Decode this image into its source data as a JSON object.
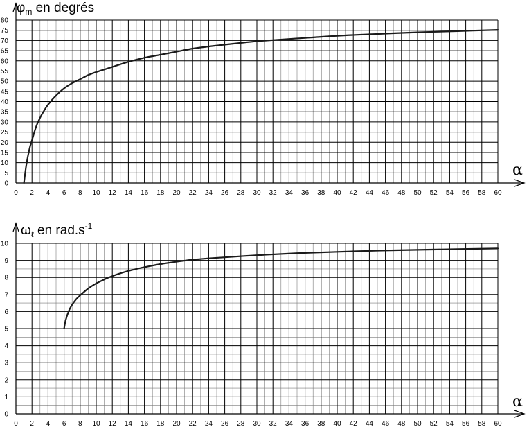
{
  "chart_data": [
    {
      "type": "line",
      "title": {
        "symbol": "φ",
        "subscript": "m",
        "text": " en degrés"
      },
      "xlabel": "α",
      "xlim": [
        0,
        60
      ],
      "ylim": [
        0,
        80
      ],
      "x_ticks": [
        "0",
        "2",
        "4",
        "6",
        "8",
        "10",
        "12",
        "14",
        "16",
        "18",
        "20",
        "22",
        "24",
        "26",
        "28",
        "30",
        "32",
        "34",
        "36",
        "38",
        "40",
        "42",
        "44",
        "46",
        "48",
        "50",
        "52",
        "54",
        "56",
        "58",
        "60"
      ],
      "y_ticks": [
        "0",
        "5",
        "10",
        "15",
        "20",
        "25",
        "30",
        "35",
        "40",
        "45",
        "50",
        "55",
        "60",
        "65",
        "70",
        "75",
        "80"
      ],
      "grid": true,
      "series": [
        {
          "color": "#1a1a1a",
          "x": [
            1,
            1.3,
            1.7,
            2,
            2.5,
            3,
            3.5,
            4,
            5,
            6,
            7,
            8,
            9,
            10,
            12,
            14,
            16,
            18,
            20,
            22,
            25,
            28,
            30,
            32,
            35,
            40,
            45,
            50,
            55,
            60
          ],
          "y": [
            0,
            9,
            17,
            21,
            27.5,
            32,
            35.5,
            38.5,
            43,
            46.5,
            49,
            51,
            53,
            54.5,
            57,
            59.5,
            61.5,
            63,
            64.5,
            66,
            67.5,
            68.8,
            69.6,
            70.2,
            71,
            72.3,
            73.2,
            74,
            74.6,
            75.2
          ]
        }
      ]
    },
    {
      "type": "line",
      "title": {
        "symbol": "ω",
        "subscript": "ℓ",
        "text": " en rad.s",
        "superscript": "-1"
      },
      "xlabel": "α",
      "xlim": [
        0,
        60
      ],
      "ylim": [
        0,
        10
      ],
      "x_ticks": [
        "0",
        "2",
        "4",
        "6",
        "8",
        "10",
        "12",
        "14",
        "16",
        "18",
        "20",
        "22",
        "24",
        "26",
        "28",
        "30",
        "32",
        "34",
        "36",
        "38",
        "40",
        "42",
        "44",
        "46",
        "48",
        "50",
        "52",
        "54",
        "56",
        "58",
        "60"
      ],
      "y_ticks": [
        "0",
        "1",
        "2",
        "3",
        "4",
        "5",
        "6",
        "7",
        "8",
        "9",
        "10"
      ],
      "grid": true,
      "series": [
        {
          "color": "#1a1a1a",
          "x": [
            6,
            6.2,
            6.6,
            7,
            7.5,
            8,
            9,
            10,
            11,
            12,
            14,
            16,
            18,
            20,
            22,
            25,
            30,
            35,
            40,
            45,
            50,
            55,
            60
          ],
          "y": [
            5,
            5.5,
            6.05,
            6.4,
            6.72,
            6.95,
            7.35,
            7.65,
            7.88,
            8.08,
            8.38,
            8.6,
            8.78,
            8.92,
            9.04,
            9.15,
            9.3,
            9.42,
            9.5,
            9.57,
            9.62,
            9.66,
            9.7
          ]
        }
      ]
    }
  ]
}
